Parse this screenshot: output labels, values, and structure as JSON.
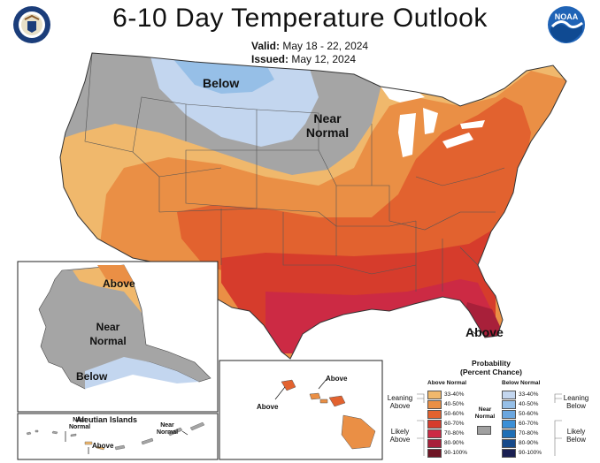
{
  "header": {
    "title": "6-10 Day Temperature Outlook",
    "valid_label": "Valid:",
    "valid_value": "May 18 - 22, 2024",
    "issued_label": "Issued:",
    "issued_value": "May 12, 2024",
    "seal_icon": "doc-seal-icon",
    "noaa_logo_text": "NOAA"
  },
  "map_labels": {
    "below_main": "Below",
    "near_normal_main_1": "Near",
    "near_normal_main_2": "Normal",
    "above_main": "Above",
    "alaska_above": "Above",
    "alaska_near_1": "Near",
    "alaska_near_2": "Normal",
    "alaska_below": "Below",
    "hawaii_above_1": "Above",
    "hawaii_above_2": "Above",
    "aleutian_title": "Aleutian Islands",
    "aleutian_near_left_1": "Near",
    "aleutian_near_left_2": "Normal",
    "aleutian_above": "Above",
    "aleutian_near_right_1": "Near",
    "aleutian_near_right_2": "Normal"
  },
  "legend": {
    "title_1": "Probability",
    "title_2": "(Percent Chance)",
    "above_head": "Above Normal",
    "below_head": "Below Normal",
    "near_normal_1": "Near",
    "near_normal_2": "Normal",
    "near_color": "#a0a0a0",
    "leaning_above_1": "Leaning",
    "leaning_above_2": "Above",
    "likely_above_1": "Likely",
    "likely_above_2": "Above",
    "leaning_below_1": "Leaning",
    "leaning_below_2": "Below",
    "likely_below_1": "Likely",
    "likely_below_2": "Below",
    "above": [
      {
        "label": "33-40%",
        "color": "#f0b86c"
      },
      {
        "label": "40-50%",
        "color": "#ea8f45"
      },
      {
        "label": "50-60%",
        "color": "#e2622f"
      },
      {
        "label": "60-70%",
        "color": "#d63c2c"
      },
      {
        "label": "70-80%",
        "color": "#cc2a44"
      },
      {
        "label": "80-90%",
        "color": "#a8203a"
      },
      {
        "label": "90-100%",
        "color": "#6e1424"
      }
    ],
    "below": [
      {
        "label": "33-40%",
        "color": "#c3d6ef"
      },
      {
        "label": "40-50%",
        "color": "#96bfe7"
      },
      {
        "label": "50-60%",
        "color": "#6aa6df"
      },
      {
        "label": "60-70%",
        "color": "#3b8fd6"
      },
      {
        "label": "70-80%",
        "color": "#1f6fb6"
      },
      {
        "label": "80-90%",
        "color": "#174a8a"
      },
      {
        "label": "90-100%",
        "color": "#1a1f52"
      }
    ]
  }
}
